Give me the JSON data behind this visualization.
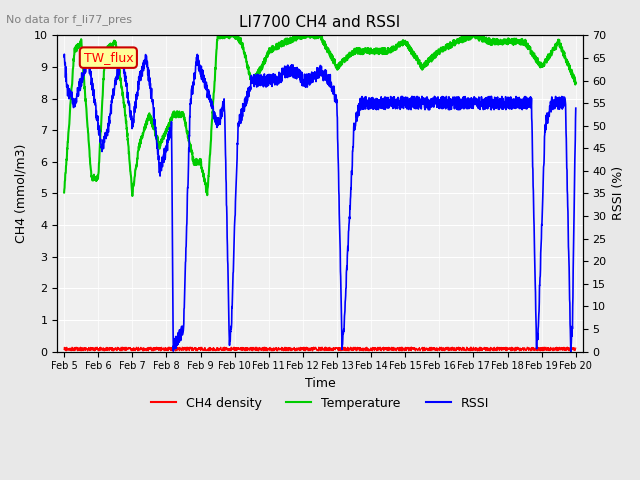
{
  "title": "LI7700 CH4 and RSSI",
  "subtitle": "No data for f_li77_pres",
  "xlabel": "Time",
  "ylabel_left": "CH4 (mmol/m3)",
  "ylabel_right": "RSSI (%)",
  "annotation": "TW_flux",
  "ylim_left": [
    0.0,
    10.0
  ],
  "ylim_right": [
    0,
    70
  ],
  "yticks_left": [
    0.0,
    1.0,
    2.0,
    3.0,
    4.0,
    5.0,
    6.0,
    7.0,
    8.0,
    9.0,
    10.0
  ],
  "yticks_right": [
    0,
    5,
    10,
    15,
    20,
    25,
    30,
    35,
    40,
    45,
    50,
    55,
    60,
    65,
    70
  ],
  "xtick_labels": [
    "Feb 5",
    "Feb 6",
    "Feb 7",
    "Feb 8",
    "Feb 9",
    "Feb 10",
    "Feb 11",
    "Feb 12",
    "Feb 13",
    "Feb 14",
    "Feb 15",
    "Feb 16",
    "Feb 17",
    "Feb 18",
    "Feb 19",
    "Feb 20"
  ],
  "bg_color": "#e8e8e8",
  "plot_bg_color": "#f0f0f0",
  "ch4_color": "#ff0000",
  "temp_color": "#00cc00",
  "rssi_color": "#0000ff",
  "legend_items": [
    "CH4 density",
    "Temperature",
    "RSSI"
  ],
  "annotation_box_color": "#ffff99",
  "annotation_text_color": "#ff0000",
  "temp_xp": [
    0,
    0.3,
    0.5,
    0.8,
    1.0,
    1.2,
    1.5,
    1.8,
    2.0,
    2.2,
    2.5,
    2.8,
    3.0,
    3.2,
    3.5,
    3.8,
    4.0,
    4.2,
    4.5,
    4.8,
    5.0,
    5.2,
    5.5,
    5.8,
    6.0,
    6.5,
    7.0,
    7.5,
    8.0,
    8.5,
    9.0,
    9.5,
    10.0,
    10.5,
    11.0,
    11.5,
    12.0,
    12.5,
    13.0,
    13.5,
    14.0,
    14.5,
    15.0
  ],
  "temp_fp": [
    5.0,
    9.5,
    9.8,
    5.5,
    5.5,
    9.5,
    9.8,
    7.5,
    5.0,
    6.5,
    7.5,
    6.5,
    7.0,
    7.5,
    7.5,
    6.0,
    6.0,
    5.0,
    10.0,
    10.0,
    10.0,
    9.8,
    8.5,
    9.0,
    9.5,
    9.8,
    10.0,
    10.0,
    9.0,
    9.5,
    9.5,
    9.5,
    9.8,
    9.0,
    9.5,
    9.8,
    10.0,
    9.8,
    9.8,
    9.8,
    9.0,
    9.8,
    8.5
  ],
  "rssi_xp": [
    0,
    0.1,
    0.3,
    0.5,
    0.7,
    0.9,
    1.0,
    1.1,
    1.3,
    1.5,
    1.7,
    1.9,
    2.0,
    2.2,
    2.4,
    2.6,
    2.8,
    3.0,
    3.15,
    3.2,
    3.5,
    3.7,
    3.9,
    4.1,
    4.3,
    4.5,
    4.7,
    4.85,
    4.9,
    5.1,
    5.3,
    5.5,
    5.8,
    6.0,
    6.2,
    6.5,
    6.8,
    7.0,
    7.2,
    7.5,
    7.8,
    8.0,
    8.15,
    8.2,
    8.5,
    8.7,
    9.0,
    9.3,
    9.5,
    9.7,
    10.0,
    10.3,
    10.5,
    10.7,
    11.0,
    11.2,
    11.5,
    11.8,
    12.0,
    12.2,
    12.4,
    12.6,
    12.8,
    13.0,
    13.2,
    13.5,
    13.7,
    13.85,
    13.9,
    14.1,
    14.3,
    14.5,
    14.7,
    14.85,
    14.9,
    15.0
  ],
  "rssi_fp": [
    65,
    58,
    55,
    60,
    65,
    55,
    50,
    45,
    50,
    60,
    65,
    55,
    50,
    60,
    65,
    55,
    40,
    45,
    50,
    1,
    5,
    55,
    65,
    60,
    55,
    50,
    55,
    1,
    5,
    50,
    55,
    60,
    60,
    60,
    60,
    62,
    62,
    60,
    60,
    62,
    60,
    55,
    1,
    5,
    50,
    55,
    55,
    55,
    55,
    55,
    55,
    55,
    55,
    55,
    55,
    55,
    55,
    55,
    55,
    55,
    55,
    55,
    55,
    55,
    55,
    55,
    55,
    1,
    5,
    50,
    55,
    55,
    55,
    1,
    5,
    55
  ]
}
